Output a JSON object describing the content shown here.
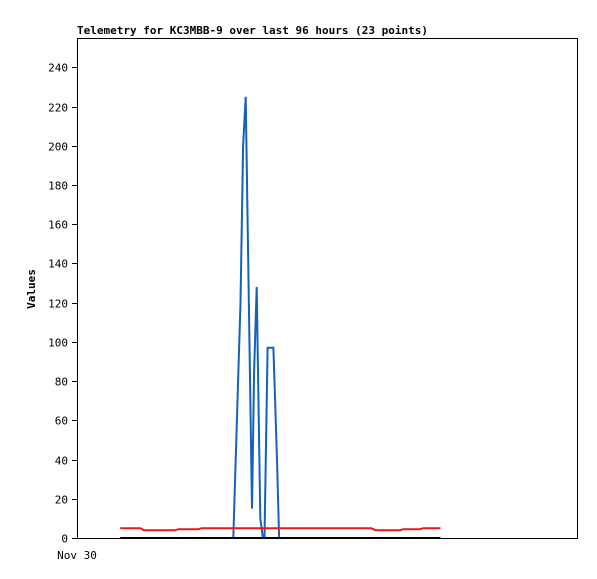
{
  "chart_data": {
    "type": "line",
    "title": "Telemetry for KC3MBB-9 over last 96 hours (23 points)",
    "ylabel": "Values",
    "xlabel": "",
    "x_tick_labels": [
      "Nov 30"
    ],
    "ylim": [
      0,
      255
    ],
    "y_ticks": [
      0,
      20,
      40,
      60,
      80,
      100,
      120,
      140,
      160,
      180,
      200,
      220,
      240
    ],
    "xlim": [
      0,
      96
    ],
    "grid": false,
    "legend": "none",
    "series": [
      {
        "color": "#1560bd",
        "x": [
          27.4,
          28.0,
          30.0,
          31.4,
          31.9,
          32.4,
          33.6,
          34.0,
          34.5,
          35.2,
          35.7,
          36.0,
          36.6,
          37.7,
          38.4,
          38.8
        ],
        "y": [
          0,
          0,
          0,
          120,
          200,
          225,
          15,
          85,
          128,
          10,
          0,
          0,
          97,
          97,
          40,
          0
        ]
      },
      {
        "color": "#e41a1c",
        "x": [
          8.3,
          12.2,
          12.8,
          18.8,
          19.5,
          23.3,
          23.9,
          27.0,
          30.0,
          33.0,
          35.0,
          38.0,
          41.0,
          44.0,
          47.0,
          50.0,
          56.5,
          57.3,
          62.0,
          62.7,
          65.8,
          66.5,
          69.8
        ],
        "y": [
          5,
          5,
          4,
          4,
          4.5,
          4.5,
          5,
          5,
          5,
          5,
          5,
          5,
          5,
          5,
          5,
          5,
          5,
          4,
          4,
          4.5,
          4.5,
          5,
          5
        ]
      },
      {
        "color": "#000000",
        "x": [
          8.3,
          69.8
        ],
        "y": [
          0,
          0
        ]
      }
    ]
  }
}
